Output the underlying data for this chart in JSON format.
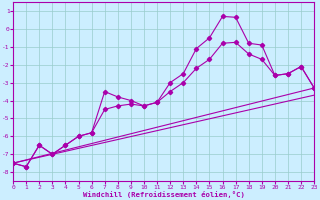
{
  "xlabel": "Windchill (Refroidissement éolien,°C)",
  "xlim": [
    0,
    23
  ],
  "ylim": [
    -8.5,
    1.5
  ],
  "yticks": [
    -8,
    -7,
    -6,
    -5,
    -4,
    -3,
    -2,
    -1,
    0,
    1
  ],
  "xticks": [
    0,
    1,
    2,
    3,
    4,
    5,
    6,
    7,
    8,
    9,
    10,
    11,
    12,
    13,
    14,
    15,
    16,
    17,
    18,
    19,
    20,
    21,
    22,
    23
  ],
  "background_color": "#cceeff",
  "grid_color": "#99cccc",
  "line_color": "#aa00aa",
  "line1_y": [
    -7.5,
    -7.7,
    -6.5,
    -7.0,
    -6.5,
    -6.0,
    -5.8,
    -3.5,
    -3.8,
    -4.0,
    -4.3,
    -4.1,
    -3.0,
    -2.5,
    -1.1,
    -0.5,
    0.7,
    0.65,
    -0.8,
    -0.9,
    -2.6,
    -2.5,
    -2.1,
    -3.3
  ],
  "line2_y": [
    -7.5,
    -7.7,
    -6.5,
    -7.0,
    -6.5,
    -6.0,
    -5.8,
    -4.5,
    -4.3,
    -4.2,
    -4.3,
    -4.1,
    -3.5,
    -3.0,
    -2.2,
    -1.7,
    -0.8,
    -0.75,
    -1.4,
    -1.7,
    -2.6,
    -2.5,
    -2.1,
    -3.3
  ],
  "straight1": [
    -7.5,
    -3.3
  ],
  "straight2": [
    -7.5,
    -3.7
  ]
}
